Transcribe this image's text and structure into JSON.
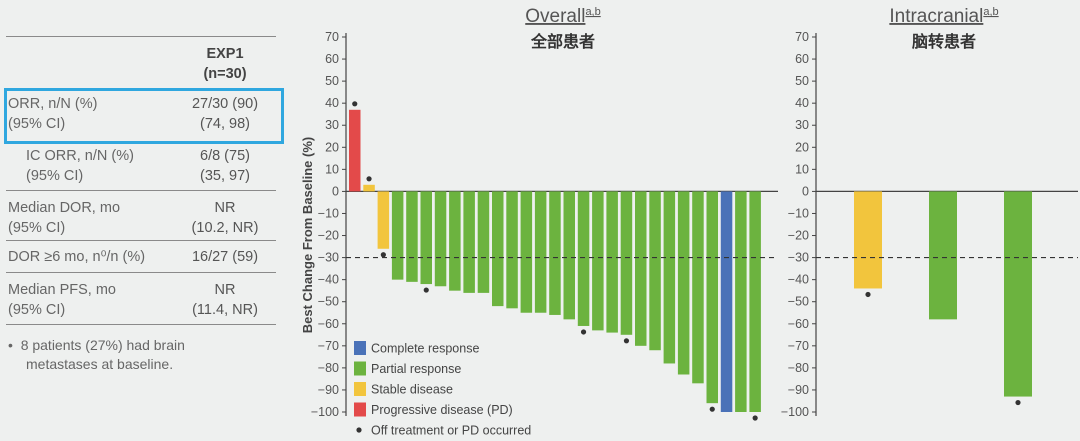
{
  "table": {
    "header": {
      "col": "EXP1",
      "n": "(n=30)"
    },
    "rows": [
      {
        "label1": "ORR, n/N (%)",
        "label2": "(95% CI)",
        "value1": "27/30 (90)",
        "value2": "(74, 98)"
      },
      {
        "label1": "IC ORR, n/N (%)",
        "label2": "(95% CI)",
        "value1": "6/8 (75)",
        "value2": "(35, 97)"
      },
      {
        "label1": "Median DOR, mo",
        "label2": "(95% CI)",
        "value1": "NR",
        "value2": "(10.2, NR)"
      },
      {
        "label1": "DOR ≥6 mo, n⁰/n (%)",
        "label2": "",
        "value1": "16/27 (59)",
        "value2": ""
      },
      {
        "label1": "Median PFS, mo",
        "label2": "(95% CI)",
        "value1": "NR",
        "value2": "(11.4, NR)"
      }
    ],
    "note_line1": "8 patients (27%) had brain",
    "note_line2": "metastases at baseline."
  },
  "colors": {
    "complete": "#4a72b8",
    "partial": "#6cb33f",
    "stable": "#f2c53d",
    "progressive": "#e34a4a",
    "highlight": "#2fa7df"
  },
  "chart_data": [
    {
      "type": "bar",
      "title": "Overall",
      "title_superscript": "a,b",
      "subtitle": "全部患者",
      "ylabel": "Best Change From Baseline (%)",
      "ylim": [
        -100,
        70
      ],
      "yticks": [
        70,
        60,
        50,
        40,
        30,
        20,
        10,
        0,
        -10,
        -20,
        -30,
        -40,
        -50,
        -60,
        -70,
        -80,
        -90,
        -100
      ],
      "reference_line": -30,
      "bars": [
        {
          "value": 37,
          "response": "progressive",
          "dot": true
        },
        {
          "value": 3,
          "response": "stable",
          "dot": true
        },
        {
          "value": -26,
          "response": "stable",
          "dot": true
        },
        {
          "value": -40,
          "response": "partial",
          "dot": false
        },
        {
          "value": -41,
          "response": "partial",
          "dot": false
        },
        {
          "value": -42,
          "response": "partial",
          "dot": true
        },
        {
          "value": -43,
          "response": "partial",
          "dot": false
        },
        {
          "value": -45,
          "response": "partial",
          "dot": false
        },
        {
          "value": -46,
          "response": "partial",
          "dot": false
        },
        {
          "value": -46,
          "response": "partial",
          "dot": false
        },
        {
          "value": -52,
          "response": "partial",
          "dot": false
        },
        {
          "value": -53,
          "response": "partial",
          "dot": false
        },
        {
          "value": -55,
          "response": "partial",
          "dot": false
        },
        {
          "value": -55,
          "response": "partial",
          "dot": false
        },
        {
          "value": -56,
          "response": "partial",
          "dot": false
        },
        {
          "value": -58,
          "response": "partial",
          "dot": false
        },
        {
          "value": -61,
          "response": "partial",
          "dot": true
        },
        {
          "value": -63,
          "response": "partial",
          "dot": false
        },
        {
          "value": -64,
          "response": "partial",
          "dot": false
        },
        {
          "value": -65,
          "response": "partial",
          "dot": true
        },
        {
          "value": -70,
          "response": "partial",
          "dot": false
        },
        {
          "value": -72,
          "response": "partial",
          "dot": false
        },
        {
          "value": -78,
          "response": "partial",
          "dot": false
        },
        {
          "value": -83,
          "response": "partial",
          "dot": false
        },
        {
          "value": -87,
          "response": "partial",
          "dot": false
        },
        {
          "value": -96,
          "response": "partial",
          "dot": true
        },
        {
          "value": -100,
          "response": "complete",
          "dot": false
        },
        {
          "value": -100,
          "response": "partial",
          "dot": false
        },
        {
          "value": -100,
          "response": "partial",
          "dot": true
        }
      ],
      "legend": [
        {
          "key": "complete",
          "label": "Complete response"
        },
        {
          "key": "partial",
          "label": "Partial response"
        },
        {
          "key": "stable",
          "label": "Stable disease"
        },
        {
          "key": "progressive",
          "label": "Progressive disease (PD)"
        },
        {
          "key": "dot",
          "label": "Off treatment or PD occurred"
        }
      ]
    },
    {
      "type": "bar",
      "title": "Intracranial",
      "title_superscript": "a,b",
      "subtitle": "脑转患者",
      "ylim": [
        -100,
        70
      ],
      "yticks": [
        70,
        60,
        50,
        40,
        30,
        20,
        10,
        0,
        -10,
        -20,
        -30,
        -40,
        -50,
        -60,
        -70,
        -80,
        -90,
        -100
      ],
      "reference_line": -30,
      "bars": [
        {
          "value": -44,
          "response": "stable",
          "dot": true
        },
        {
          "value": -58,
          "response": "partial",
          "dot": false
        },
        {
          "value": -93,
          "response": "partial",
          "dot": true
        }
      ]
    }
  ]
}
